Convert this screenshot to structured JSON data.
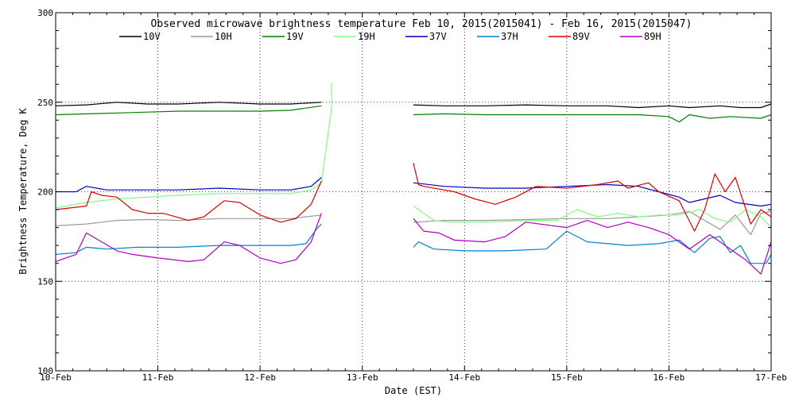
{
  "chart_data": {
    "type": "line",
    "title": "Observed microwave brightness temperature Feb 10, 2015(2015041) - Feb 16, 2015(2015047)",
    "xlabel": "Date (EST)",
    "ylabel": "Brightness Temperature, Deg K",
    "xlim": [
      0,
      7
    ],
    "ylim": [
      100,
      300
    ],
    "x_tick_labels": [
      "10-Feb",
      "11-Feb",
      "12-Feb",
      "13-Feb",
      "14-Feb",
      "15-Feb",
      "16-Feb",
      "17-Feb"
    ],
    "y_ticks": [
      100,
      150,
      200,
      250,
      300
    ],
    "y_tick_labels": [
      "100",
      "150",
      "200",
      "250",
      "300"
    ],
    "grid": "dotted",
    "legend_position": "top",
    "series": [
      {
        "name": "10V",
        "color": "#000000",
        "points": [
          [
            0,
            248
          ],
          [
            0.3,
            248.5
          ],
          [
            0.6,
            250
          ],
          [
            0.9,
            249
          ],
          [
            1.2,
            249
          ],
          [
            1.6,
            250
          ],
          [
            2.0,
            249
          ],
          [
            2.3,
            249
          ],
          [
            2.6,
            250
          ],
          null,
          [
            3.5,
            248.5
          ],
          [
            3.8,
            248
          ],
          [
            4.2,
            248
          ],
          [
            4.6,
            248.5
          ],
          [
            5.0,
            248
          ],
          [
            5.4,
            248
          ],
          [
            5.7,
            247
          ],
          [
            6.0,
            248
          ],
          [
            6.2,
            247
          ],
          [
            6.5,
            248
          ],
          [
            6.7,
            247
          ],
          [
            6.9,
            247
          ],
          [
            7.0,
            249
          ]
        ]
      },
      {
        "name": "10H",
        "color": "#999999",
        "points": [
          [
            0,
            181
          ],
          [
            0.3,
            182
          ],
          [
            0.6,
            184
          ],
          [
            0.9,
            184.5
          ],
          [
            1.2,
            184
          ],
          [
            1.6,
            185
          ],
          [
            2.0,
            185
          ],
          [
            2.3,
            185
          ],
          [
            2.6,
            187
          ],
          null,
          [
            3.5,
            183
          ],
          [
            3.8,
            184
          ],
          [
            4.2,
            184
          ],
          [
            4.6,
            184.5
          ],
          [
            5.0,
            185
          ],
          [
            5.4,
            185
          ],
          [
            5.7,
            186
          ],
          [
            6.0,
            187
          ],
          [
            6.2,
            189
          ],
          [
            6.35,
            184
          ],
          [
            6.5,
            179
          ],
          [
            6.65,
            187
          ],
          [
            6.8,
            176
          ],
          [
            6.9,
            188
          ],
          [
            7.0,
            189
          ]
        ]
      },
      {
        "name": "19V",
        "color": "#008000",
        "points": [
          [
            0,
            243
          ],
          [
            0.3,
            243.5
          ],
          [
            0.6,
            244
          ],
          [
            0.9,
            244.5
          ],
          [
            1.2,
            245
          ],
          [
            1.6,
            245
          ],
          [
            2.0,
            245
          ],
          [
            2.3,
            245.5
          ],
          [
            2.6,
            248
          ],
          null,
          [
            3.5,
            243
          ],
          [
            3.8,
            243.5
          ],
          [
            4.2,
            243
          ],
          [
            4.6,
            243
          ],
          [
            5.0,
            243
          ],
          [
            5.4,
            243
          ],
          [
            5.7,
            243
          ],
          [
            6.0,
            242
          ],
          [
            6.1,
            239
          ],
          [
            6.2,
            243
          ],
          [
            6.4,
            241
          ],
          [
            6.6,
            242
          ],
          [
            6.9,
            241
          ],
          [
            7.0,
            243
          ]
        ]
      },
      {
        "name": "19H",
        "color": "#80ff80",
        "points": [
          [
            0,
            191
          ],
          [
            0.3,
            194
          ],
          [
            0.6,
            196
          ],
          [
            0.9,
            197
          ],
          [
            1.2,
            198
          ],
          [
            1.6,
            199
          ],
          [
            2.0,
            199
          ],
          [
            2.3,
            199
          ],
          [
            2.5,
            201
          ],
          [
            2.6,
            205
          ],
          [
            2.7,
            247
          ],
          [
            2.7,
            261
          ],
          null,
          [
            3.5,
            192
          ],
          [
            3.7,
            184
          ],
          [
            3.85,
            183
          ],
          [
            4.2,
            183
          ],
          [
            4.6,
            184
          ],
          [
            4.9,
            184
          ],
          [
            5.1,
            190
          ],
          [
            5.3,
            186
          ],
          [
            5.5,
            188
          ],
          [
            5.7,
            186
          ],
          [
            5.9,
            187
          ],
          [
            6.1,
            187
          ],
          [
            6.3,
            190
          ],
          [
            6.45,
            185
          ],
          [
            6.6,
            183
          ],
          [
            6.75,
            190
          ],
          [
            6.9,
            186
          ],
          [
            7.0,
            180
          ]
        ]
      },
      {
        "name": "37V",
        "color": "#0000c0",
        "points": [
          [
            0,
            200
          ],
          [
            0.2,
            200
          ],
          [
            0.3,
            203
          ],
          [
            0.5,
            201
          ],
          [
            0.9,
            201
          ],
          [
            1.2,
            201
          ],
          [
            1.6,
            202
          ],
          [
            2.0,
            201
          ],
          [
            2.3,
            201
          ],
          [
            2.5,
            203
          ],
          [
            2.6,
            208
          ],
          null,
          [
            3.5,
            205
          ],
          [
            3.8,
            203
          ],
          [
            4.2,
            202
          ],
          [
            4.6,
            202
          ],
          [
            5.0,
            203
          ],
          [
            5.4,
            204
          ],
          [
            5.7,
            203
          ],
          [
            5.9,
            200
          ],
          [
            6.1,
            197
          ],
          [
            6.2,
            194
          ],
          [
            6.35,
            196
          ],
          [
            6.5,
            198
          ],
          [
            6.65,
            194
          ],
          [
            6.9,
            192
          ],
          [
            7.0,
            193
          ]
        ]
      },
      {
        "name": "37H",
        "color": "#0080d0",
        "points": [
          [
            0,
            165
          ],
          [
            0.2,
            166
          ],
          [
            0.3,
            169
          ],
          [
            0.5,
            168
          ],
          [
            0.8,
            169
          ],
          [
            1.2,
            169
          ],
          [
            1.6,
            170
          ],
          [
            2.0,
            170
          ],
          [
            2.3,
            170
          ],
          [
            2.45,
            171
          ],
          [
            2.55,
            179
          ],
          [
            2.6,
            182
          ],
          null,
          [
            3.5,
            169
          ],
          [
            3.55,
            172
          ],
          [
            3.7,
            168
          ],
          [
            4.0,
            167
          ],
          [
            4.4,
            167
          ],
          [
            4.8,
            168
          ],
          [
            5.0,
            178
          ],
          [
            5.2,
            172
          ],
          [
            5.6,
            170
          ],
          [
            5.9,
            171
          ],
          [
            6.1,
            173
          ],
          [
            6.25,
            166
          ],
          [
            6.4,
            174
          ],
          [
            6.5,
            175
          ],
          [
            6.6,
            166
          ],
          [
            6.7,
            170
          ],
          [
            6.8,
            160
          ],
          [
            6.95,
            160
          ],
          [
            7.0,
            165
          ]
        ]
      },
      {
        "name": "89V",
        "color": "#e00000",
        "points": [
          [
            0,
            190
          ],
          [
            0.3,
            192
          ],
          [
            0.35,
            200
          ],
          [
            0.45,
            198
          ],
          [
            0.6,
            197
          ],
          [
            0.75,
            190
          ],
          [
            0.9,
            188
          ],
          [
            1.05,
            188
          ],
          [
            1.3,
            184
          ],
          [
            1.45,
            186
          ],
          [
            1.65,
            195
          ],
          [
            1.8,
            194
          ],
          [
            2.0,
            187
          ],
          [
            2.2,
            183
          ],
          [
            2.35,
            185
          ],
          [
            2.5,
            193
          ],
          [
            2.6,
            206
          ],
          null,
          [
            3.5,
            216
          ],
          [
            3.55,
            204
          ],
          [
            3.6,
            203
          ],
          [
            3.9,
            200
          ],
          [
            4.1,
            196
          ],
          [
            4.3,
            193
          ],
          [
            4.5,
            197
          ],
          [
            4.7,
            203
          ],
          [
            5.0,
            202
          ],
          [
            5.3,
            204
          ],
          [
            5.5,
            206
          ],
          [
            5.6,
            202
          ],
          [
            5.8,
            205
          ],
          [
            5.9,
            200
          ],
          [
            6.1,
            195
          ],
          [
            6.25,
            178
          ],
          [
            6.35,
            190
          ],
          [
            6.45,
            210
          ],
          [
            6.55,
            200
          ],
          [
            6.65,
            208
          ],
          [
            6.8,
            182
          ],
          [
            6.9,
            190
          ],
          [
            7.0,
            186
          ]
        ]
      },
      {
        "name": "89H",
        "color": "#b000c0",
        "points": [
          [
            0,
            161
          ],
          [
            0.2,
            165
          ],
          [
            0.3,
            177
          ],
          [
            0.45,
            172
          ],
          [
            0.6,
            167
          ],
          [
            0.75,
            165
          ],
          [
            1.0,
            163
          ],
          [
            1.3,
            161
          ],
          [
            1.45,
            162
          ],
          [
            1.65,
            172
          ],
          [
            1.8,
            170
          ],
          [
            2.0,
            163
          ],
          [
            2.2,
            160
          ],
          [
            2.35,
            162
          ],
          [
            2.5,
            172
          ],
          [
            2.6,
            188
          ],
          null,
          [
            3.5,
            185
          ],
          [
            3.6,
            178
          ],
          [
            3.75,
            177
          ],
          [
            3.9,
            173
          ],
          [
            4.2,
            172
          ],
          [
            4.4,
            175
          ],
          [
            4.6,
            183
          ],
          [
            5.0,
            180
          ],
          [
            5.2,
            184
          ],
          [
            5.4,
            180
          ],
          [
            5.6,
            183
          ],
          [
            5.8,
            180
          ],
          [
            6.0,
            176
          ],
          [
            6.2,
            168
          ],
          [
            6.4,
            176
          ],
          [
            6.5,
            172
          ],
          [
            6.65,
            166
          ],
          [
            6.75,
            162
          ],
          [
            6.9,
            154
          ],
          [
            7.0,
            172
          ]
        ]
      }
    ]
  }
}
